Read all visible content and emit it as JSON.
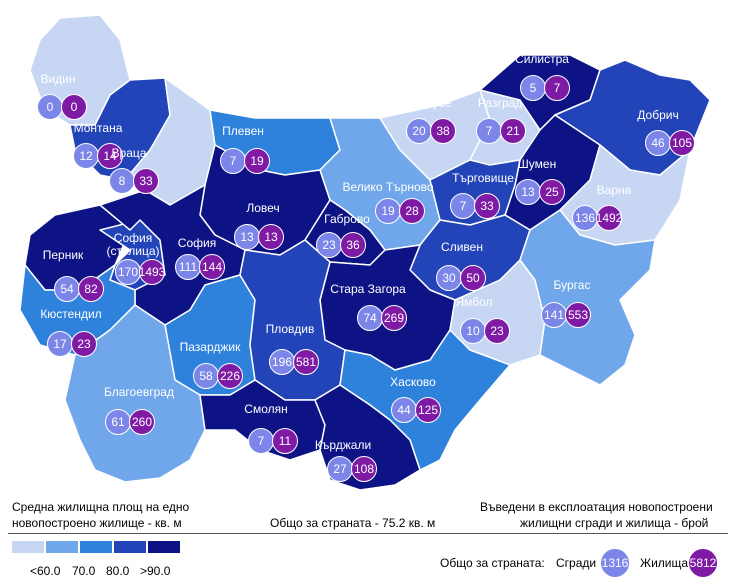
{
  "colors": {
    "lt60": "#c6d6f3",
    "c60_70": "#6fa7ea",
    "c70_80": "#2f82dc",
    "c80_90": "#2244b8",
    "gt90": "#0d1285",
    "buildings": "#7b86e8",
    "dwellings": "#7e1aa3"
  },
  "regions": [
    {
      "name": "Видин",
      "buildings": "0",
      "dwellings": "0",
      "class": "lt60"
    },
    {
      "name": "Монтана",
      "buildings": "12",
      "dwellings": "14",
      "class": "c80_90"
    },
    {
      "name": "Враца",
      "buildings": "8",
      "dwellings": "33",
      "class": "lt60"
    },
    {
      "name": "Плевен",
      "buildings": "7",
      "dwellings": "19",
      "class": "c70_80"
    },
    {
      "name": "Ловеч",
      "buildings": "13",
      "dwellings": "13",
      "class": "gt90"
    },
    {
      "name": "Велико Търново",
      "buildings": "19",
      "dwellings": "28",
      "class": "c60_70"
    },
    {
      "name": "Габрово",
      "buildings": "23",
      "dwellings": "36",
      "class": "gt90"
    },
    {
      "name": "Русе",
      "buildings": "20",
      "dwellings": "38",
      "class": "lt60"
    },
    {
      "name": "Разград",
      "buildings": "7",
      "dwellings": "21",
      "class": "lt60"
    },
    {
      "name": "Силистра",
      "buildings": "5",
      "dwellings": "7",
      "class": "gt90"
    },
    {
      "name": "Добрич",
      "buildings": "46",
      "dwellings": "105",
      "class": "c80_90"
    },
    {
      "name": "Шумен",
      "buildings": "13",
      "dwellings": "25",
      "class": "gt90"
    },
    {
      "name": "Търговище",
      "buildings": "7",
      "dwellings": "33",
      "class": "c80_90"
    },
    {
      "name": "Варна",
      "buildings": "136",
      "dwellings": "1492",
      "class": "lt60"
    },
    {
      "name": "Перник",
      "buildings": "54",
      "dwellings": "82",
      "class": "gt90"
    },
    {
      "name": "София (столица)",
      "buildings": "170",
      "dwellings": "1493",
      "class": "c80_90"
    },
    {
      "name": "София",
      "buildings": "111",
      "dwellings": "144",
      "class": "gt90"
    },
    {
      "name": "Кюстендил",
      "buildings": "17",
      "dwellings": "23",
      "class": "c70_80"
    },
    {
      "name": "Сливен",
      "buildings": "30",
      "dwellings": "50",
      "class": "c80_90"
    },
    {
      "name": "Стара Загора",
      "buildings": "74",
      "dwellings": "269",
      "class": "gt90"
    },
    {
      "name": "Ямбол",
      "buildings": "10",
      "dwellings": "23",
      "class": "lt60"
    },
    {
      "name": "Бургас",
      "buildings": "141",
      "dwellings": "553",
      "class": "c60_70"
    },
    {
      "name": "Пазарджик",
      "buildings": "58",
      "dwellings": "226",
      "class": "c70_80"
    },
    {
      "name": "Пловдив",
      "buildings": "196",
      "dwellings": "581",
      "class": "c80_90"
    },
    {
      "name": "Благоевград",
      "buildings": "61",
      "dwellings": "260",
      "class": "c60_70"
    },
    {
      "name": "Смолян",
      "buildings": "7",
      "dwellings": "11",
      "class": "gt90"
    },
    {
      "name": "Хасково",
      "buildings": "44",
      "dwellings": "125",
      "class": "c70_80"
    },
    {
      "name": "Кърджали",
      "buildings": "27",
      "dwellings": "108",
      "class": "gt90"
    }
  ],
  "footer": {
    "left_title_line1": "Средна жилищна площ на едно",
    "left_title_line2": "новопостроено жилище - кв. м",
    "center_text": "Общо за страната - 75.2 кв. м",
    "right_title_line1": "Въведени в експлоатация новопостроени",
    "right_title_line2": "жилищни сгради и жилища - брой",
    "legend_labels": [
      "<60.0",
      "70.0",
      "80.0",
      ">90.0"
    ],
    "total_label": "Общо за страната:",
    "buildings_label": "Сгради",
    "buildings_total": "1316",
    "dwellings_label": "Жилища",
    "dwellings_total": "5812"
  }
}
